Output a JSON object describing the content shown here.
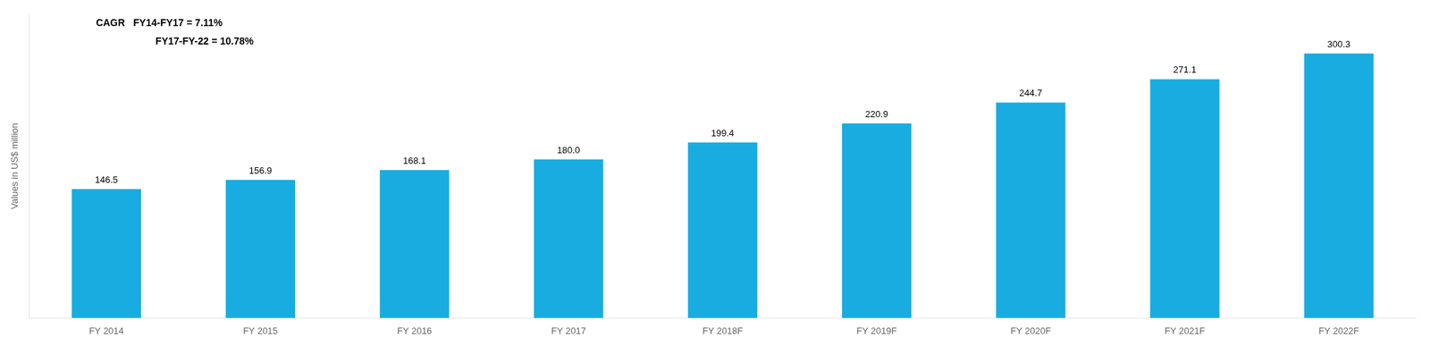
{
  "chart_data": {
    "type": "bar",
    "categories": [
      "FY 2014",
      "FY 2015",
      "FY 2016",
      "FY 2017",
      "FY 2018F",
      "FY 2019F",
      "FY 2020F",
      "FY 2021F",
      "FY 2022F"
    ],
    "values": [
      146.5,
      156.9,
      168.1,
      180.0,
      199.4,
      220.9,
      244.7,
      271.1,
      300.3
    ],
    "value_labels": [
      "146.5",
      "156.9",
      "168.1",
      "180.0",
      "199.4",
      "220.9",
      "244.7",
      "271.1",
      "300.3"
    ],
    "data_labels": true,
    "color": "#19ace0",
    "ylabel": "Values in US$ million",
    "ylim": [
      0,
      345
    ],
    "yticks": [],
    "tick_labels": "x",
    "grid": false,
    "annotations": [
      "CAGR   FY14-FY17 = 7.11%",
      "FY17-FY-22 = 10.78%"
    ]
  }
}
